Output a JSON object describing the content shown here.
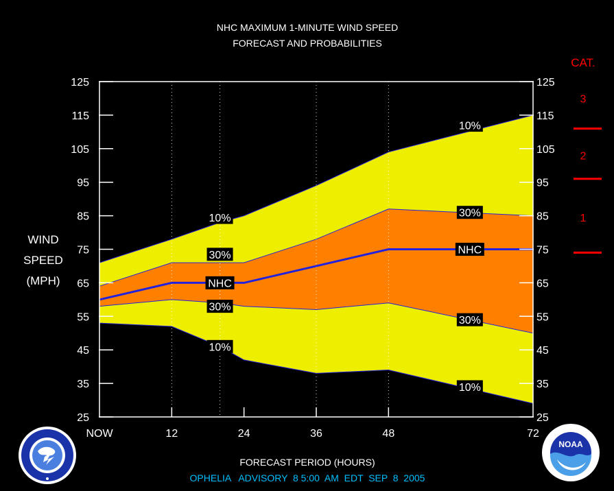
{
  "title_line1": "NHC MAXIMUM 1-MINUTE WIND SPEED",
  "title_line2": "FORECAST AND PROBABILITIES",
  "ylabel": [
    "WIND",
    "SPEED",
    "(MPH)"
  ],
  "xlabel": "FORECAST PERIOD (HOURS)",
  "advisory": "OPHELIA   ADVISORY  8 5:00  AM  EDT  SEP  8  2005",
  "cat_header": "CAT.",
  "categories": [
    {
      "label": "3",
      "y_center": 120
    },
    {
      "label": "2",
      "y_center": 103
    },
    {
      "label": "1",
      "y_center": 84.5
    }
  ],
  "category_thresholds": [
    111,
    96,
    74
  ],
  "logos": {
    "left": "nws-logo",
    "right": "noaa-logo",
    "right_text": "NOAA"
  },
  "chart_data": {
    "type": "area",
    "x": [
      0,
      12,
      20,
      24,
      36,
      48,
      72
    ],
    "xticks": [
      0,
      12,
      24,
      36,
      48,
      72
    ],
    "xtick_labels": [
      "NOW",
      "12",
      "24",
      "36",
      "48",
      "72"
    ],
    "xlim": [
      0,
      72
    ],
    "ylim": [
      25,
      125
    ],
    "yticks": [
      25,
      35,
      45,
      55,
      65,
      75,
      85,
      95,
      105,
      115,
      125
    ],
    "vertical_grid_at": [
      12,
      20,
      36,
      48
    ],
    "series": [
      {
        "name": "10%",
        "values": [
          71,
          78,
          83,
          85,
          94,
          104,
          115
        ],
        "role": "upper10"
      },
      {
        "name": "30%",
        "values": [
          64,
          71,
          71,
          71,
          78,
          87,
          85
        ],
        "role": "upper30"
      },
      {
        "name": "NHC",
        "values": [
          60,
          65,
          65,
          65,
          70,
          75,
          75
        ],
        "role": "nhc"
      },
      {
        "name": "30%",
        "values": [
          58,
          60,
          59,
          58,
          57,
          59,
          50
        ],
        "role": "lower30"
      },
      {
        "name": "10%",
        "values": [
          53,
          52,
          46,
          42,
          38,
          39,
          29
        ],
        "role": "lower10"
      }
    ],
    "labels": [
      {
        "text": "10%",
        "x": 20,
        "y": 84.5
      },
      {
        "text": "30%",
        "x": 20,
        "y": 73.5
      },
      {
        "text": "NHC",
        "x": 20,
        "y": 65
      },
      {
        "text": "30%",
        "x": 20,
        "y": 58
      },
      {
        "text": "10%",
        "x": 20,
        "y": 46
      },
      {
        "text": "10%",
        "x": 61.5,
        "y": 112
      },
      {
        "text": "30%",
        "x": 61.5,
        "y": 86
      },
      {
        "text": "NHC",
        "x": 61.5,
        "y": 75
      },
      {
        "text": "30%",
        "x": 61.5,
        "y": 54
      },
      {
        "text": "10%",
        "x": 61.5,
        "y": 34
      }
    ],
    "colors": {
      "outer_band": "#EEEE00",
      "inner_band": "#FF8000",
      "nhc_line": "#2222DD",
      "category_marks": "#FF0000",
      "advisory_text": "#00BFFF",
      "text": "#FFFFFF"
    }
  }
}
